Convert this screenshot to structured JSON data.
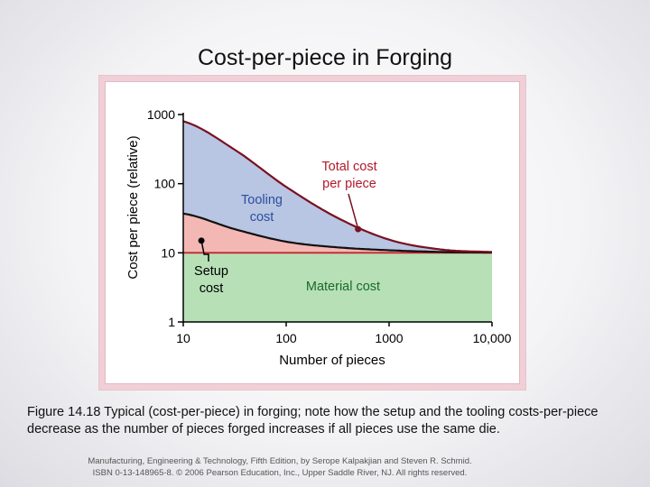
{
  "slide": {
    "title": "Cost-per-piece in Forging",
    "caption": "Figure 14.18 Typical (cost-per-piece) in forging; note how the setup and the tooling costs-per-piece decrease as the number of pieces forged increases if all pieces use the same die.",
    "footer_line1": "Manufacturing, Engineering & Technology, Fifth Edition, by Serope Kalpakjian and Steven R. Schmid.",
    "footer_line2": "ISBN 0-13-148965-8. © 2006 Pearson Education, Inc., Upper Saddle River, NJ.  All rights reserved."
  },
  "chart_data": {
    "type": "area",
    "xscale": "log",
    "yscale": "log",
    "xlabel": "Number of pieces",
    "ylabel": "Cost per piece (relative)",
    "xlim": [
      10,
      10000
    ],
    "ylim": [
      1,
      1000
    ],
    "x_ticks": [
      10,
      100,
      1000,
      10000
    ],
    "x_tick_labels": [
      "10",
      "100",
      "1000",
      "10,000"
    ],
    "y_ticks": [
      1,
      10,
      100,
      1000
    ],
    "y_tick_labels": [
      "1",
      "10",
      "100",
      "1000"
    ],
    "grid": false,
    "series": [
      {
        "name": "Material cost",
        "x": [
          10,
          10000
        ],
        "y": [
          10,
          10
        ]
      },
      {
        "name": "Setup cost",
        "x": [
          10,
          31.6,
          100,
          316,
          1000,
          3162,
          10000
        ],
        "y": [
          37,
          22,
          14.5,
          12,
          10.9,
          10.3,
          10.1
        ]
      },
      {
        "name": "Total cost per piece",
        "x": [
          10,
          31.6,
          100,
          316,
          1000,
          3162,
          10000
        ],
        "y": [
          800,
          310,
          90,
          32,
          15.5,
          11.2,
          10.3
        ]
      }
    ],
    "annotations": [
      {
        "line1": "Total cost",
        "line2": "per piece",
        "point": [
          500,
          22
        ]
      },
      {
        "line1": "Tooling",
        "line2": "cost"
      },
      {
        "line1": "Setup",
        "line2": "cost",
        "point": [
          15,
          15
        ]
      },
      {
        "line1": "Material cost",
        "line2": ""
      }
    ],
    "colors": {
      "material": "#b7e0b7",
      "setup": "#f4b8b4",
      "tooling": "#b8c5e3",
      "total_line": "#7a1020",
      "setup_line": "#111111",
      "material_line": "#c2272d"
    }
  }
}
